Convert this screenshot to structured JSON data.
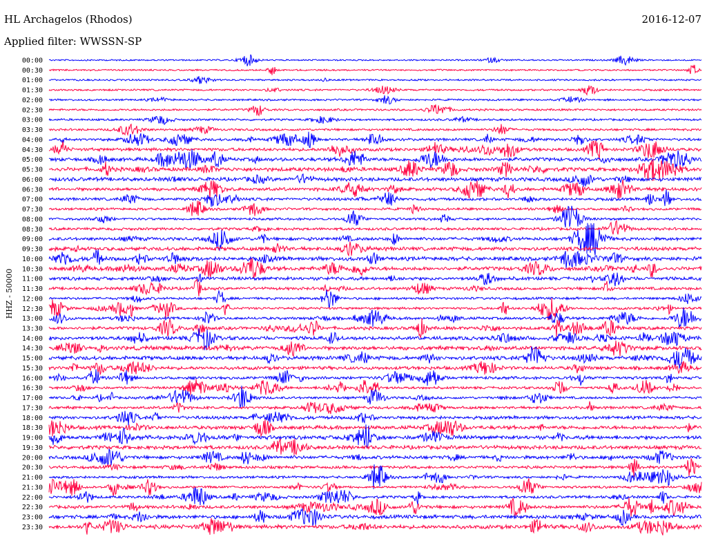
{
  "header": {
    "title": "HL Archagelos (Rhodos)",
    "filter_label": "Applied filter: WWSSN-SP",
    "date": "2016-12-07"
  },
  "chart_data": {
    "type": "line",
    "title": "HL Archagelos (Rhodos)",
    "subtitle": "Applied filter: WWSSN-SP",
    "date": "2016-12-07",
    "ylabel": "HHZ - 50000",
    "xlabel": "",
    "trace_colors": [
      "#0000ff",
      "#ff0040"
    ],
    "tick_labels": [
      "00:00",
      "00:30",
      "01:00",
      "01:30",
      "02:00",
      "02:30",
      "03:00",
      "03:30",
      "04:00",
      "04:30",
      "05:00",
      "05:30",
      "06:00",
      "06:30",
      "07:00",
      "07:30",
      "08:00",
      "08:30",
      "09:00",
      "09:30",
      "10:00",
      "10:30",
      "11:00",
      "11:30",
      "12:00",
      "12:30",
      "13:00",
      "13:30",
      "14:00",
      "14:30",
      "15:00",
      "15:30",
      "16:00",
      "16:30",
      "17:00",
      "17:30",
      "18:00",
      "18:30",
      "19:00",
      "19:30",
      "20:00",
      "20:30",
      "21:00",
      "21:30",
      "22:00",
      "22:30",
      "23:00",
      "23:30"
    ],
    "grid": false,
    "legend": "none"
  }
}
